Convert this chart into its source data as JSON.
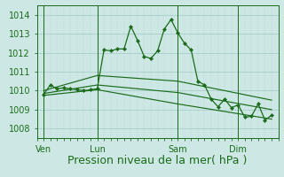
{
  "background_color": "#cde8e4",
  "grid_major_color": "#a8ceca",
  "grid_minor_color": "#b8deda",
  "line_color": "#1a6b1a",
  "xlabel": "Pression niveau de la mer( hPa )",
  "xlabel_fontsize": 9,
  "ylim": [
    1007.5,
    1014.5
  ],
  "yticks": [
    1008,
    1009,
    1010,
    1011,
    1012,
    1013,
    1014
  ],
  "xlim": [
    0,
    36
  ],
  "day_labels": [
    "Ven",
    "Lun",
    "Sam",
    "Dim"
  ],
  "day_positions": [
    1,
    9,
    21,
    30
  ],
  "series1_x": [
    1,
    2,
    3,
    4,
    5,
    6,
    7,
    8,
    9,
    10,
    11,
    12,
    13,
    14,
    15,
    16,
    17,
    18,
    19,
    20,
    21,
    22,
    23,
    24,
    25,
    26,
    27,
    28,
    29,
    30,
    31,
    32,
    33,
    34,
    35
  ],
  "series1_y": [
    1009.8,
    1010.3,
    1010.1,
    1010.15,
    1010.1,
    1010.05,
    1010.0,
    1010.05,
    1010.1,
    1012.15,
    1012.1,
    1012.2,
    1012.2,
    1013.4,
    1012.65,
    1011.8,
    1011.7,
    1012.1,
    1013.25,
    1013.75,
    1013.05,
    1012.5,
    1012.15,
    1010.5,
    1010.3,
    1009.55,
    1009.15,
    1009.55,
    1009.1,
    1009.25,
    1008.6,
    1008.65,
    1009.3,
    1008.45,
    1008.7
  ],
  "trend1_x": [
    1,
    9,
    21,
    35
  ],
  "trend1_y": [
    1010.0,
    1010.8,
    1010.5,
    1009.5
  ],
  "trend2_x": [
    1,
    9,
    21,
    35
  ],
  "trend2_y": [
    1009.85,
    1010.3,
    1009.9,
    1009.0
  ],
  "trend3_x": [
    1,
    9,
    21,
    35
  ],
  "trend3_y": [
    1009.75,
    1010.05,
    1009.3,
    1008.5
  ]
}
